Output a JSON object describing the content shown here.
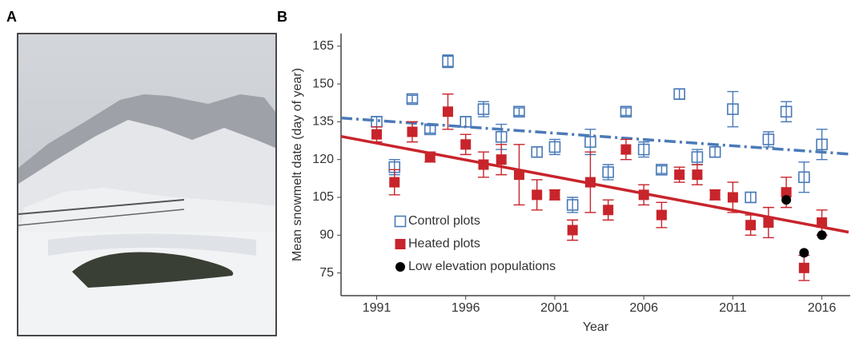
{
  "panel_labels": [
    "A",
    "B"
  ],
  "chart_data": {
    "type": "scatter",
    "x_label": "Year",
    "y_label": "Mean snowmelt date (day of year)",
    "xlim": [
      1989,
      2017.5
    ],
    "ylim": [
      66,
      170
    ],
    "xticks": [
      1991,
      1996,
      2001,
      2006,
      2011,
      2016
    ],
    "yticks": [
      75,
      90,
      105,
      120,
      135,
      150,
      165
    ],
    "legend": "lower left",
    "x": [
      1991,
      1992,
      1993,
      1994,
      1995,
      1996,
      1997,
      1998,
      1999,
      2000,
      2001,
      2002,
      2003,
      2004,
      2005,
      2006,
      2007,
      2008,
      2009,
      2010,
      2011,
      2012,
      2013,
      2014,
      2015,
      2016
    ],
    "series": [
      {
        "name": "Control plots",
        "color": "#4a7ab8",
        "marker": "open-square",
        "values": [
          135,
          117,
          144,
          132,
          159,
          135,
          140,
          129,
          139,
          123,
          125,
          102,
          127,
          115,
          139,
          124,
          116,
          146,
          121,
          123,
          140,
          105,
          128,
          139,
          113,
          126
        ],
        "errors": [
          2,
          3,
          1.5,
          1.5,
          2.5,
          2,
          3,
          5,
          1.5,
          2,
          3,
          3,
          5,
          3,
          1.5,
          3,
          1.5,
          2,
          3,
          2,
          7,
          2,
          3,
          4,
          6,
          6
        ],
        "trend": {
          "x": [
            1989,
            2017.5
          ],
          "values": [
            136.5,
            122.2
          ],
          "dash": true
        }
      },
      {
        "name": "Heated plots",
        "color": "#c8242b",
        "marker": "square",
        "values": [
          130,
          111,
          131,
          121,
          139,
          126,
          118,
          120,
          114,
          106,
          106,
          92,
          111,
          100,
          124,
          106,
          98,
          114,
          114,
          106,
          105,
          94,
          95,
          107,
          77,
          95
        ],
        "errors": [
          3,
          5,
          4,
          2,
          7,
          4,
          5,
          6,
          12,
          6,
          2,
          4,
          12,
          4,
          4,
          4,
          5,
          3,
          4,
          2,
          6,
          4,
          6,
          6,
          5,
          5
        ],
        "trend": {
          "x": [
            1989,
            2017.5
          ],
          "values": [
            129.2,
            91.2
          ],
          "dash": false
        }
      },
      {
        "name": "Low elevation populations",
        "color": "#000000",
        "marker": "circle",
        "x": [
          2014,
          2015,
          2016
        ],
        "values": [
          104,
          83,
          90
        ]
      }
    ]
  }
}
